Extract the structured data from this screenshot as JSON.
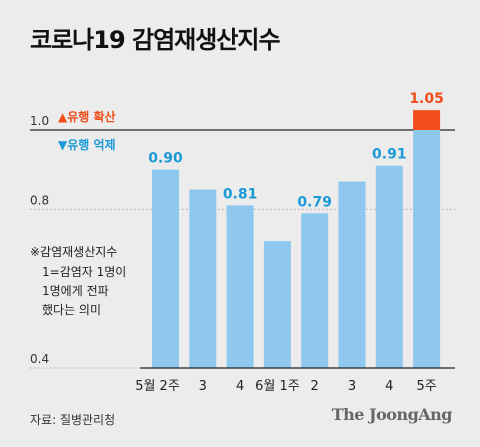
{
  "title": "코로나19 감염재생산지수",
  "source": "자료: 질병관리청",
  "brand": "The JoongAng",
  "colors": {
    "background": "#ececec",
    "bar": "#8ec8ee",
    "highlight": "#f04d1a",
    "label_blue": "#1a9ad6",
    "label_red": "#f04d1a",
    "grid": "#9a9a9a"
  },
  "legend": {
    "up_marker": "▲",
    "up_label": "유행 확산",
    "down_marker": "▼",
    "down_label": "유행 억제"
  },
  "note": {
    "heading": "※감염재생산지수",
    "lines": [
      "1=감염자 1명이",
      "1명에게 전파",
      "했다는 의미"
    ]
  },
  "chart_data": {
    "type": "bar",
    "title": "코로나19 감염재생산지수",
    "categories": [
      "5월 2주",
      "3",
      "4",
      "6월 1주",
      "2",
      "3",
      "4",
      "5주"
    ],
    "values": [
      0.9,
      0.85,
      0.81,
      0.72,
      0.79,
      0.87,
      0.91,
      1.05
    ],
    "data_labels": [
      "0.90",
      "",
      "0.81",
      "",
      "0.79",
      "",
      "0.91",
      "1.05"
    ],
    "y_ticks": [
      "0.4",
      "0.8",
      "1.0"
    ],
    "y_tick_values": [
      0.4,
      0.8,
      1.0
    ],
    "threshold": 1.0,
    "ylim": [
      0.4,
      1.1
    ],
    "grid": true,
    "xlabel": "",
    "ylabel": ""
  }
}
